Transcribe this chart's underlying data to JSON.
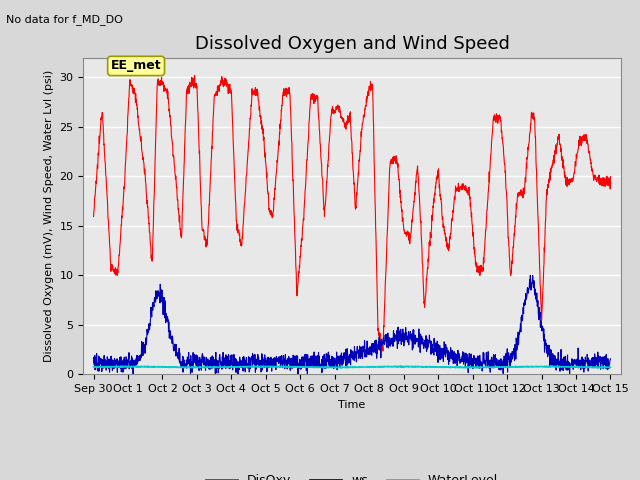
{
  "title": "Dissolved Oxygen and Wind Speed",
  "top_left_text": "No data for f_MD_DO",
  "annotation_text": "EE_met",
  "xlabel": "Time",
  "ylabel": "Dissolved Oxygen (mV), Wind Speed, Water Lvl (psi)",
  "ylim": [
    0,
    32
  ],
  "yticks": [
    0,
    5,
    10,
    15,
    20,
    25,
    30
  ],
  "xlim_start": -0.3,
  "xlim_end": 15.3,
  "xtick_labels": [
    "Sep 30",
    "Oct 1",
    "Oct 2",
    "Oct 3",
    "Oct 4",
    "Oct 5",
    "Oct 6",
    "Oct 7",
    "Oct 8",
    "Oct 9",
    "Oct 10",
    "Oct 11",
    "Oct 12",
    "Oct 13",
    "Oct 14",
    "Oct 15"
  ],
  "disoxy_color": "#FF0000",
  "ws_color": "#0000BB",
  "waterlevel_color": "#00CCCC",
  "disoxy_linewidth": 0.8,
  "ws_linewidth": 0.8,
  "waterlevel_linewidth": 1.2,
  "background_color": "#D8D8D8",
  "plot_bg_color": "#E8E8E8",
  "grid_color": "#FFFFFF",
  "title_fontsize": 13,
  "label_fontsize": 8,
  "tick_fontsize": 8,
  "legend_fontsize": 9,
  "annotation_fontsize": 9
}
